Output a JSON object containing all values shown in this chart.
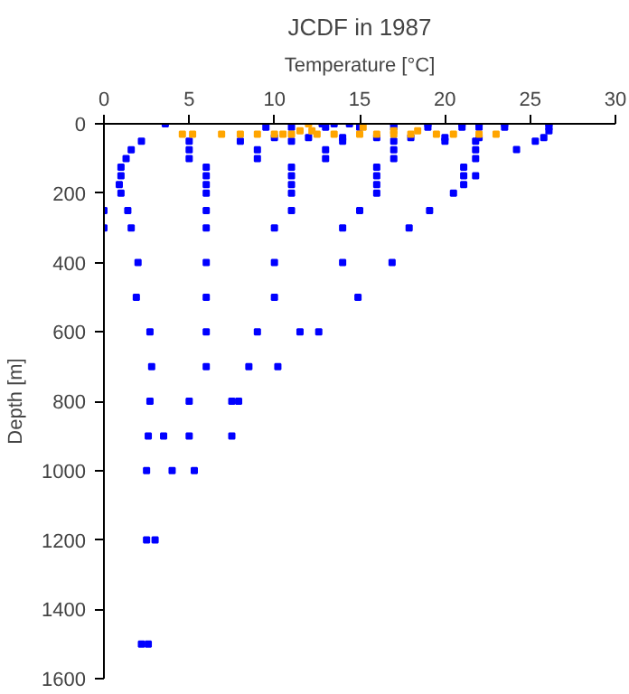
{
  "chart_data": {
    "type": "scatter",
    "title": "JCDF in 1987",
    "xlabel": "Temperature [°C]",
    "ylabel": "Depth [m]",
    "xlim": [
      0,
      30
    ],
    "xticks": [
      0,
      5,
      10,
      15,
      20,
      25,
      30
    ],
    "ylim": [
      1600,
      0
    ],
    "yticks": [
      0,
      200,
      400,
      600,
      800,
      1000,
      1200,
      1400,
      1600
    ],
    "grid": false,
    "marker": "square",
    "series": [
      {
        "color": "#0000ff",
        "x": [
          3.6,
          12.8,
          13.5,
          14.4,
          17,
          19,
          21,
          22,
          23.5,
          26.1,
          26.1,
          26.1,
          9.5,
          11,
          13,
          15,
          17,
          19,
          21,
          22,
          23.5,
          10,
          12,
          14,
          16,
          18,
          20,
          22,
          25.8,
          2.2,
          5,
          8,
          11,
          14,
          17,
          20,
          21.8,
          25.3,
          1.6,
          5,
          9,
          13,
          17,
          21.8,
          24.2,
          1.3,
          5,
          9,
          13,
          17,
          21.8,
          1.0,
          6,
          11,
          16,
          21.1,
          1.0,
          6,
          11,
          16,
          21.1,
          21.8,
          0.9,
          6,
          11,
          16,
          21.1,
          1.0,
          6,
          11,
          16,
          20.5,
          0,
          1.4,
          6,
          11,
          15,
          19.1,
          0,
          1.6,
          6,
          10,
          14,
          17.9,
          2.0,
          6,
          10,
          14,
          16.9,
          1.9,
          6,
          10,
          14.9,
          2.7,
          6,
          9,
          11.5,
          12.6,
          2.8,
          6,
          8.5,
          10.2,
          2.7,
          5,
          7.5,
          7.9,
          2.6,
          3.5,
          5,
          7.5,
          2.5,
          4,
          5.3,
          2.5,
          3.0,
          2.2,
          2.6
        ],
        "values": [
          0,
          0,
          0,
          0,
          0,
          0,
          0,
          0,
          0,
          0,
          10,
          20,
          10,
          10,
          10,
          10,
          10,
          10,
          10,
          10,
          10,
          40,
          40,
          40,
          40,
          40,
          40,
          40,
          40,
          50,
          50,
          50,
          50,
          50,
          50,
          50,
          50,
          50,
          75,
          75,
          75,
          75,
          75,
          75,
          74,
          100,
          100,
          100,
          100,
          100,
          100,
          125,
          125,
          125,
          125,
          125,
          150,
          150,
          150,
          150,
          150,
          150,
          175,
          175,
          175,
          175,
          175,
          200,
          200,
          200,
          200,
          200,
          250,
          250,
          250,
          250,
          250,
          250,
          300,
          300,
          300,
          300,
          300,
          300,
          400,
          400,
          400,
          400,
          400,
          500,
          500,
          500,
          500,
          600,
          600,
          600,
          600,
          600,
          700,
          700,
          700,
          700,
          800,
          800,
          800,
          800,
          900,
          900,
          900,
          900,
          1000,
          1000,
          1000,
          1200,
          1200,
          1500,
          1500
        ]
      },
      {
        "color": "#ffa500",
        "x": [
          4.6,
          5.2,
          6.9,
          8,
          9,
          10,
          10.5,
          11,
          12.5,
          13.5,
          15,
          16,
          17,
          18,
          19.5,
          20.5,
          22,
          23,
          11.5,
          12.2,
          17,
          18.4,
          12.0,
          15.2
        ],
        "values": [
          30,
          30,
          30,
          30,
          30,
          30,
          30,
          30,
          30,
          30,
          30,
          30,
          30,
          30,
          30,
          30,
          30,
          30,
          20,
          20,
          20,
          20,
          0,
          10
        ]
      }
    ]
  }
}
